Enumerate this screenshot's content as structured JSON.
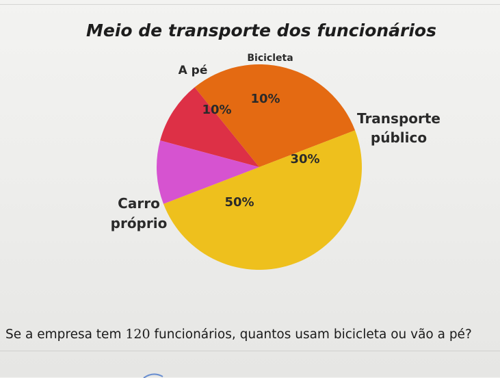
{
  "chart_data": {
    "type": "pie",
    "title": "Meio de transporte dos funcionários",
    "slices": [
      {
        "name": "Bicicleta",
        "label_lines": [
          "Bicicleta"
        ],
        "value": 10,
        "value_label": "10%",
        "color": "#dd3046"
      },
      {
        "name": "Transporte público",
        "label_lines": [
          "Transporte",
          "público"
        ],
        "value": 30,
        "value_label": "30%",
        "color": "#e46a12"
      },
      {
        "name": "Carro próprio",
        "label_lines": [
          "Carro",
          "próprio"
        ],
        "value": 50,
        "value_label": "50%",
        "color": "#eec01d"
      },
      {
        "name": "A pé",
        "label_lines": [
          "A pé"
        ],
        "value": 10,
        "value_label": "10%",
        "color": "#d653d0"
      }
    ],
    "legend": "none",
    "grid": false
  },
  "question": {
    "prefix": "Se a empresa tem ",
    "number": "120",
    "suffix": " funcionários, quantos usam bicicleta ou vão a pé?"
  }
}
